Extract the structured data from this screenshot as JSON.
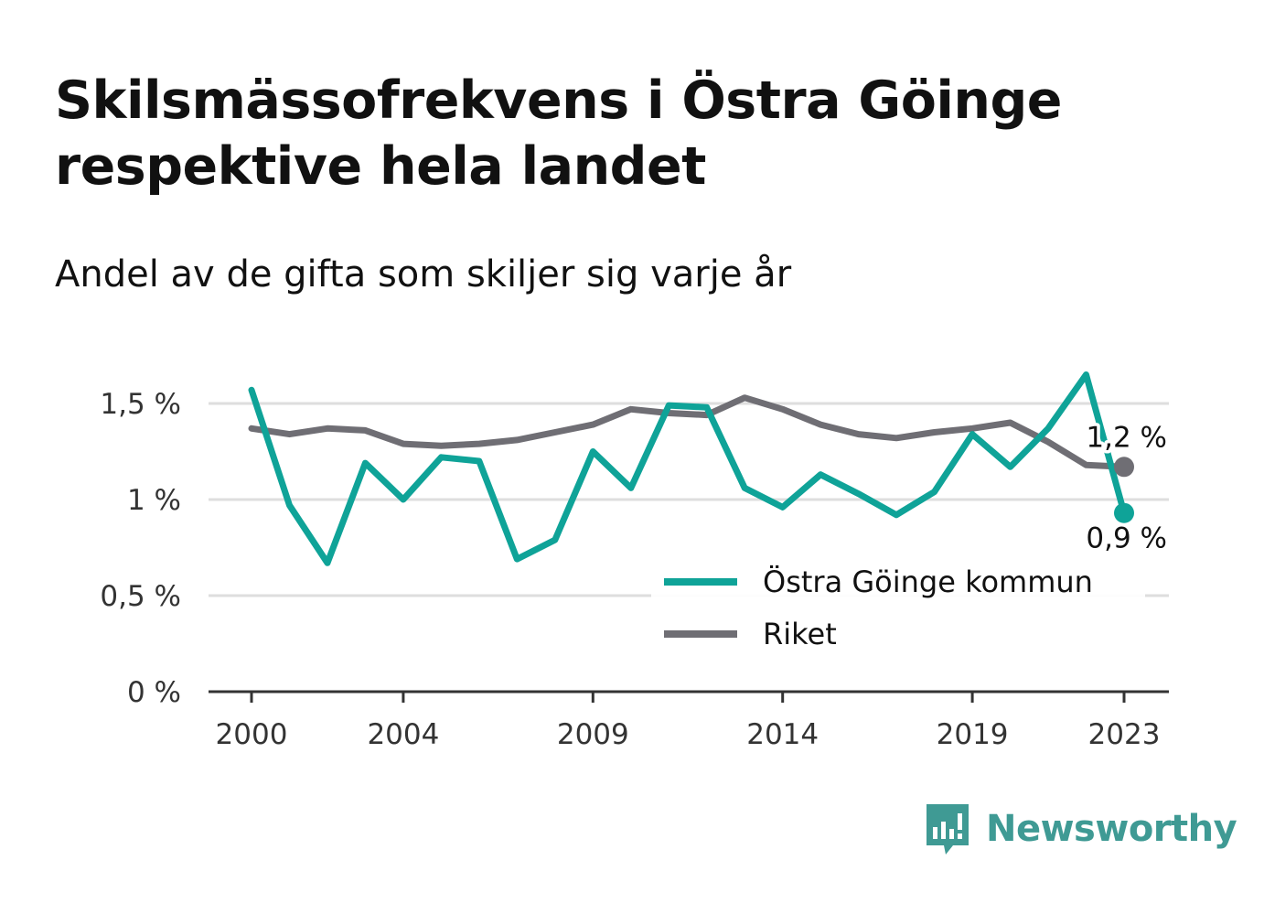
{
  "title": "Skilsmässofrekvens i Östra Göinge respektive hela landet",
  "subtitle": "Andel av de gifta som skiljer sig varje år",
  "brand": {
    "name": "Newsworthy",
    "icon": "newsworthy-logo-icon",
    "color": "#3f9a94"
  },
  "chart_data": {
    "type": "line",
    "x": [
      2000,
      2001,
      2002,
      2003,
      2004,
      2005,
      2006,
      2007,
      2008,
      2009,
      2010,
      2011,
      2012,
      2013,
      2014,
      2015,
      2016,
      2017,
      2018,
      2019,
      2020,
      2021,
      2022,
      2023
    ],
    "x_ticks": [
      "2000",
      "2004",
      "2009",
      "2014",
      "2019",
      "2023"
    ],
    "x_tick_values": [
      2000,
      2004,
      2009,
      2014,
      2019,
      2023
    ],
    "y_ticks": [
      "0 %",
      "0,5 %",
      "1 %",
      "1,5 %"
    ],
    "y_tick_values": [
      0,
      0.5,
      1,
      1.5
    ],
    "ylim": [
      0,
      1.5
    ],
    "grid": true,
    "series": [
      {
        "name": "Östra Göinge kommun",
        "color": "#0fa398",
        "values": [
          1.57,
          0.97,
          0.67,
          1.19,
          1.0,
          1.22,
          1.2,
          0.69,
          0.79,
          1.25,
          1.06,
          1.49,
          1.48,
          1.06,
          0.96,
          1.13,
          1.03,
          0.92,
          1.04,
          1.34,
          1.17,
          1.37,
          1.65,
          0.93
        ],
        "end_label": "0,9 %"
      },
      {
        "name": "Riket",
        "color": "#6f6e74",
        "values": [
          1.37,
          1.34,
          1.37,
          1.36,
          1.29,
          1.28,
          1.29,
          1.31,
          1.35,
          1.39,
          1.47,
          1.45,
          1.44,
          1.53,
          1.47,
          1.39,
          1.34,
          1.32,
          1.35,
          1.37,
          1.4,
          1.3,
          1.18,
          1.17
        ],
        "end_label": "1,2 %"
      }
    ],
    "legend": "bottom-right"
  }
}
